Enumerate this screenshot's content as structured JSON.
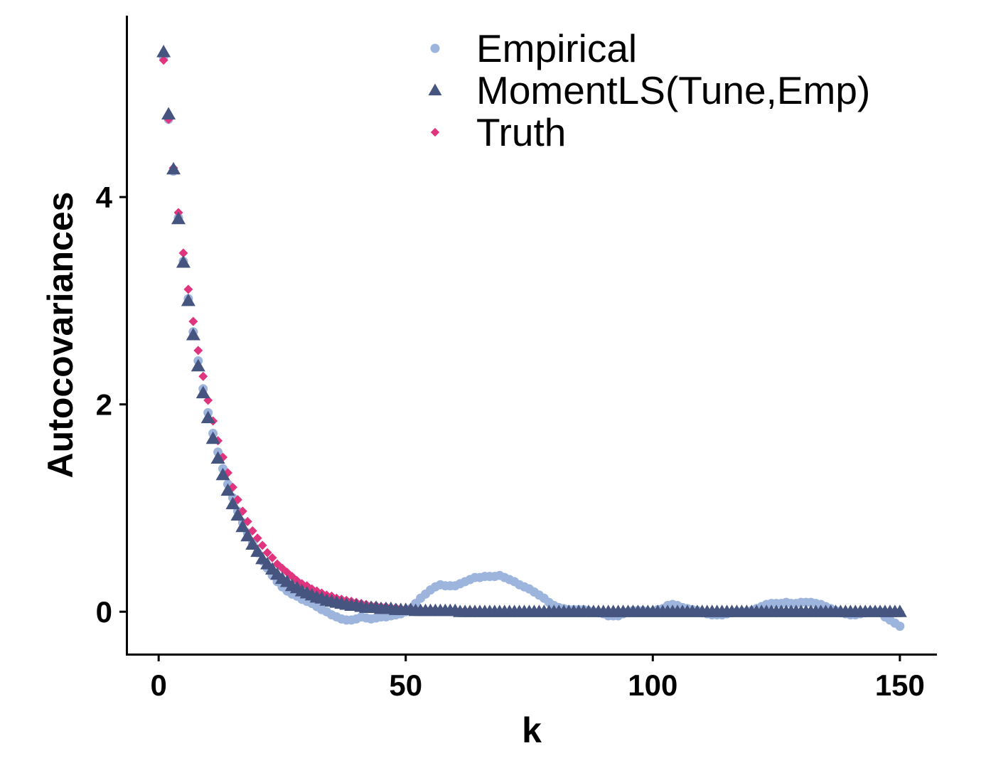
{
  "chart_data": {
    "type": "scatter",
    "title": "",
    "xlabel": "k",
    "ylabel": "Autocovariances",
    "xlim": [
      -6.5,
      157.5
    ],
    "ylim": [
      -0.41,
      5.75
    ],
    "xticks": [
      0,
      50,
      100,
      150
    ],
    "yticks": [
      0,
      2,
      4
    ],
    "grid": false,
    "legend_position": "top-right",
    "series": [
      {
        "name": "Empirical",
        "marker": "circle",
        "color": "#9DB4DD",
        "x": [
          1,
          2,
          3,
          4,
          5,
          6,
          7,
          8,
          9,
          10,
          11,
          12,
          13,
          14,
          15,
          16,
          17,
          18,
          19,
          20,
          21,
          22,
          23,
          24,
          25,
          26,
          27,
          28,
          29,
          30,
          31,
          32,
          33,
          34,
          35,
          36,
          37,
          38,
          39,
          40,
          41,
          42,
          43,
          44,
          45,
          46,
          47,
          48,
          49,
          50,
          51,
          52,
          53,
          54,
          55,
          56,
          57,
          58,
          59,
          60,
          61,
          62,
          63,
          64,
          65,
          66,
          67,
          68,
          69,
          70,
          71,
          72,
          73,
          74,
          75,
          76,
          77,
          78,
          79,
          80,
          81,
          82,
          83,
          84,
          85,
          86,
          87,
          88,
          89,
          90,
          91,
          92,
          93,
          94,
          95,
          96,
          97,
          98,
          99,
          100,
          101,
          102,
          103,
          104,
          105,
          106,
          107,
          108,
          109,
          110,
          111,
          112,
          113,
          114,
          115,
          116,
          117,
          118,
          119,
          120,
          121,
          122,
          123,
          124,
          125,
          126,
          127,
          128,
          129,
          130,
          131,
          132,
          133,
          134,
          135,
          136,
          137,
          138,
          139,
          140,
          141,
          142,
          143,
          144,
          145,
          146,
          147,
          148,
          149,
          150
        ],
        "y": [
          5.35,
          4.75,
          4.25,
          3.8,
          3.38,
          3.02,
          2.7,
          2.42,
          2.15,
          1.92,
          1.72,
          1.54,
          1.38,
          1.23,
          1.1,
          0.97,
          0.86,
          0.76,
          0.66,
          0.57,
          0.49,
          0.42,
          0.35,
          0.29,
          0.24,
          0.2,
          0.17,
          0.15,
          0.12,
          0.1,
          0.08,
          0.05,
          0.02,
          0.0,
          -0.03,
          -0.05,
          -0.07,
          -0.08,
          -0.08,
          -0.07,
          -0.05,
          -0.06,
          -0.07,
          -0.06,
          -0.05,
          -0.05,
          -0.04,
          -0.03,
          -0.02,
          0.0,
          0.03,
          0.08,
          0.13,
          0.17,
          0.21,
          0.24,
          0.26,
          0.25,
          0.25,
          0.25,
          0.27,
          0.29,
          0.31,
          0.33,
          0.33,
          0.34,
          0.34,
          0.34,
          0.35,
          0.33,
          0.31,
          0.29,
          0.26,
          0.24,
          0.22,
          0.19,
          0.16,
          0.13,
          0.09,
          0.06,
          0.04,
          0.03,
          0.02,
          0.02,
          0.02,
          0.02,
          0.01,
          0.0,
          -0.01,
          -0.02,
          -0.04,
          -0.04,
          -0.04,
          -0.02,
          0.0,
          0.01,
          0.01,
          0.01,
          0.0,
          0.0,
          0.02,
          0.03,
          0.06,
          0.07,
          0.06,
          0.04,
          0.03,
          0.02,
          0.01,
          -0.01,
          -0.02,
          -0.03,
          -0.03,
          -0.03,
          -0.02,
          -0.01,
          0.0,
          0.0,
          0.0,
          0.01,
          0.03,
          0.05,
          0.07,
          0.08,
          0.08,
          0.08,
          0.09,
          0.08,
          0.08,
          0.09,
          0.09,
          0.09,
          0.08,
          0.07,
          0.05,
          0.03,
          0.01,
          -0.01,
          -0.02,
          -0.03,
          -0.03,
          -0.02,
          -0.01,
          0.0,
          0.0,
          0.0,
          -0.05,
          -0.08,
          -0.11,
          -0.14
        ]
      },
      {
        "name": "MomentLS(Tune,Emp)",
        "marker": "triangle",
        "color": "#46557F",
        "x": [
          1,
          2,
          3,
          4,
          5,
          6,
          7,
          8,
          9,
          10,
          11,
          12,
          13,
          14,
          15,
          16,
          17,
          18,
          19,
          20,
          21,
          22,
          23,
          24,
          25,
          26,
          27,
          28,
          29,
          30,
          31,
          32,
          33,
          34,
          35,
          36,
          37,
          38,
          39,
          40,
          41,
          42,
          43,
          44,
          45,
          46,
          47,
          48,
          49,
          50,
          51,
          52,
          53,
          54,
          55,
          56,
          57,
          58,
          59,
          60,
          61,
          62,
          63,
          64,
          65,
          66,
          67,
          68,
          69,
          70,
          71,
          72,
          73,
          74,
          75,
          76,
          77,
          78,
          79,
          80,
          81,
          82,
          83,
          84,
          85,
          86,
          87,
          88,
          89,
          90,
          91,
          92,
          93,
          94,
          95,
          96,
          97,
          98,
          99,
          100,
          101,
          102,
          103,
          104,
          105,
          106,
          107,
          108,
          109,
          110,
          111,
          112,
          113,
          114,
          115,
          116,
          117,
          118,
          119,
          120,
          121,
          122,
          123,
          124,
          125,
          126,
          127,
          128,
          129,
          130,
          131,
          132,
          133,
          134,
          135,
          136,
          137,
          138,
          139,
          140,
          141,
          142,
          143,
          144,
          145,
          146,
          147,
          148,
          149,
          150
        ],
        "y": [
          5.4,
          4.8,
          4.27,
          3.79,
          3.37,
          3.0,
          2.67,
          2.37,
          2.11,
          1.87,
          1.67,
          1.48,
          1.32,
          1.17,
          1.04,
          0.93,
          0.82,
          0.73,
          0.65,
          0.58,
          0.51,
          0.46,
          0.41,
          0.36,
          0.32,
          0.29,
          0.25,
          0.23,
          0.2,
          0.18,
          0.16,
          0.14,
          0.13,
          0.11,
          0.1,
          0.09,
          0.08,
          0.07,
          0.06,
          0.06,
          0.05,
          0.04,
          0.04,
          0.04,
          0.03,
          0.03,
          0.03,
          0.02,
          0.02,
          0.02,
          0.02,
          0.01,
          0.01,
          0.01,
          0.01,
          0.01,
          0.01,
          0.01,
          0.01,
          0.01,
          0.0,
          0.0,
          0.0,
          0.0,
          0.0,
          0.0,
          0.0,
          0.0,
          0.0,
          0.0,
          0.0,
          0.0,
          0.0,
          0.0,
          0.0,
          0.0,
          0.0,
          0.0,
          0.0,
          0.0,
          0.0,
          0.0,
          0.0,
          0.0,
          0.0,
          0.0,
          0.0,
          0.0,
          0.0,
          0.0,
          0.0,
          0.0,
          0.0,
          0.0,
          0.0,
          0.0,
          0.0,
          0.0,
          0.0,
          0.0,
          0.0,
          0.0,
          0.0,
          0.0,
          0.0,
          0.0,
          0.0,
          0.0,
          0.0,
          0.0,
          0.0,
          0.0,
          0.0,
          0.0,
          0.0,
          0.0,
          0.0,
          0.0,
          0.0,
          0.0,
          0.0,
          0.0,
          0.0,
          0.0,
          0.0,
          0.0,
          0.0,
          0.0,
          0.0,
          0.0,
          0.0,
          0.0,
          0.0,
          0.0,
          0.0,
          0.0,
          0.0,
          0.0,
          0.0,
          0.0,
          0.0,
          0.0,
          0.0,
          0.0,
          0.0,
          0.0,
          0.0,
          0.0,
          0.0,
          0.0
        ]
      },
      {
        "name": "Truth",
        "marker": "diamond",
        "color": "#E0357E",
        "x": [
          1,
          2,
          3,
          4,
          5,
          6,
          7,
          8,
          9,
          10,
          11,
          12,
          13,
          14,
          15,
          16,
          17,
          18,
          19,
          20,
          21,
          22,
          23,
          24,
          25,
          26,
          27,
          28,
          29,
          30,
          31,
          32,
          33,
          34,
          35,
          36,
          37,
          38,
          39,
          40,
          41,
          42,
          43,
          44,
          45,
          46,
          47,
          48,
          49,
          50,
          51,
          52,
          53,
          54,
          55,
          56,
          57,
          58,
          59,
          60,
          61,
          62,
          63,
          64,
          65,
          66,
          67,
          68,
          69,
          70,
          71,
          72,
          73,
          74,
          75,
          76,
          77,
          78,
          79,
          80,
          81,
          82,
          83,
          84,
          85,
          86,
          87,
          88,
          89,
          90,
          91,
          92,
          93,
          94,
          95,
          96,
          97,
          98,
          99,
          100,
          101,
          102,
          103,
          104,
          105,
          106,
          107,
          108,
          109,
          110,
          111,
          112,
          113,
          114,
          115,
          116,
          117,
          118,
          119,
          120,
          121,
          122,
          123,
          124,
          125,
          126,
          127,
          128,
          129,
          130,
          131,
          132,
          133,
          134,
          135,
          136,
          137,
          138,
          139,
          140,
          141,
          142,
          143,
          144,
          145,
          146,
          147,
          148,
          149,
          150
        ],
        "y": [
          5.32,
          4.75,
          4.28,
          3.85,
          3.46,
          3.11,
          2.8,
          2.52,
          2.27,
          2.04,
          1.84,
          1.65,
          1.49,
          1.34,
          1.2,
          1.08,
          0.97,
          0.87,
          0.78,
          0.71,
          0.64,
          0.57,
          0.52,
          0.46,
          0.42,
          0.38,
          0.34,
          0.3,
          0.27,
          0.25,
          0.22,
          0.2,
          0.18,
          0.16,
          0.15,
          0.13,
          0.12,
          0.11,
          0.1,
          0.09,
          0.08,
          0.07,
          0.06,
          0.06,
          0.05,
          0.05,
          0.04,
          0.04,
          0.03,
          0.03,
          0.03,
          0.02,
          0.02,
          0.02,
          0.02,
          0.02,
          0.01,
          0.01,
          0.01,
          0.01,
          0.01,
          0.01,
          0.01,
          0.01,
          0.0,
          0.0,
          0.0,
          0.0,
          0.0,
          0.0,
          0.0,
          0.0,
          0.0,
          0.0,
          0.0,
          0.0,
          0.0,
          0.0,
          0.0,
          0.0,
          0.0,
          0.0,
          0.0,
          0.0,
          0.0,
          0.0,
          0.0,
          0.0,
          0.0,
          0.0,
          0.0,
          0.0,
          0.0,
          0.0,
          0.0,
          0.0,
          0.0,
          0.0,
          0.0,
          0.0,
          0.0,
          0.0,
          0.0,
          0.0,
          0.0,
          0.0,
          0.0,
          0.0,
          0.0,
          0.0,
          0.0,
          0.0,
          0.0,
          0.0,
          0.0,
          0.0,
          0.0,
          0.0,
          0.0,
          0.0,
          0.0,
          0.0,
          0.0,
          0.0,
          0.0,
          0.0,
          0.0,
          0.0,
          0.0,
          0.0,
          0.0,
          0.0,
          0.0,
          0.0,
          0.0,
          0.0,
          0.0,
          0.0,
          0.0,
          0.0,
          0.0,
          0.0,
          0.0,
          0.0,
          0.0,
          0.0,
          0.0,
          0.0,
          0.0,
          0.0
        ]
      }
    ]
  }
}
